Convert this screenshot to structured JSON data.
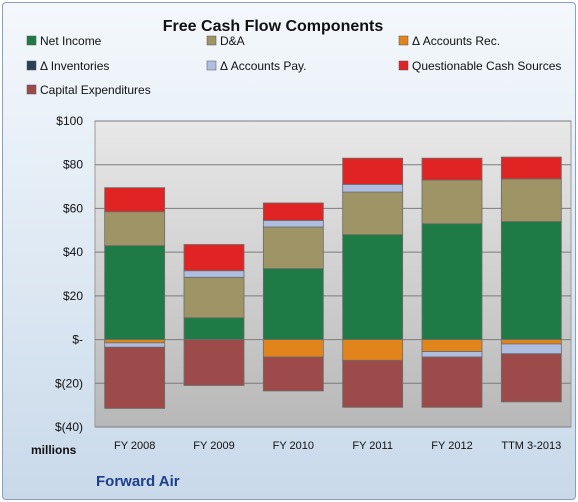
{
  "chart_data": {
    "type": "bar",
    "stacked": true,
    "title": "Free Cash Flow Components",
    "categories": [
      "FY 2008",
      "FY 2009",
      "FY 2010",
      "FY 2011",
      "FY 2012",
      "TTM 3-2013"
    ],
    "ylim": [
      -40,
      100
    ],
    "yticks": [
      {
        "v": 100,
        "label": "$100"
      },
      {
        "v": 80,
        "label": "$80"
      },
      {
        "v": 60,
        "label": "$60"
      },
      {
        "v": 40,
        "label": "$40"
      },
      {
        "v": 20,
        "label": "$20"
      },
      {
        "v": 0,
        "label": "$-"
      },
      {
        "v": -20,
        "label": "$(20)"
      },
      {
        "v": -40,
        "label": "$(40)"
      }
    ],
    "unit_label": "millions",
    "grid": true,
    "legend_position": "top",
    "series": [
      {
        "name": "Net Income",
        "color": "#1e7b45",
        "values": [
          43,
          10,
          32.5,
          48,
          53,
          54
        ]
      },
      {
        "name": "D&A",
        "color": "#9e9465",
        "values": [
          15.5,
          18.5,
          19,
          19.5,
          20,
          19.5
        ]
      },
      {
        "name": "Δ Accounts Rec.",
        "color": "#e2841c",
        "values": [
          -1.5,
          0,
          -8,
          -9.5,
          -5.5,
          -2
        ]
      },
      {
        "name": "Δ Inventories",
        "color": "#2d3e57",
        "values": [
          0,
          0,
          0,
          0,
          0,
          0
        ]
      },
      {
        "name": "Δ Accounts Pay.",
        "color": "#aebde0",
        "values": [
          -2,
          3,
          3,
          3.5,
          -2.5,
          -4.5
        ]
      },
      {
        "name": "Questionable Cash Sources",
        "color": "#e02424",
        "values": [
          11,
          12,
          8,
          12,
          10,
          10
        ]
      },
      {
        "name": "Capital Expenditures",
        "color": "#9c4a4a",
        "values": [
          -28,
          -21,
          -15.5,
          -21.5,
          -23,
          -22
        ]
      }
    ]
  },
  "footer": {
    "company": "Forward Air"
  }
}
